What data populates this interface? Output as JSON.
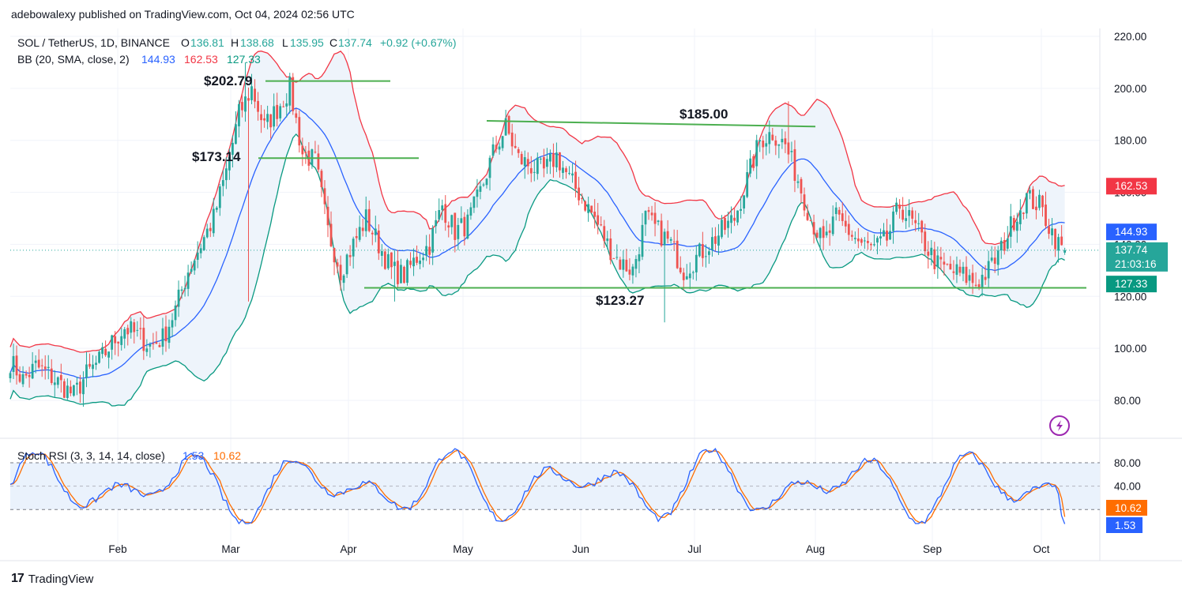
{
  "header": {
    "publisher_text": "adebowalexy published on TradingView.com, Oct 04, 2024 02:56 UTC"
  },
  "legend": {
    "symbol": "SOL / TetherUS, 1D, BINANCE",
    "o_label": "O",
    "o_value": "136.81",
    "h_label": "H",
    "h_value": "138.68",
    "l_label": "L",
    "l_value": "135.95",
    "c_label": "C",
    "c_value": "137.74",
    "change": "+0.92 (+0.67%)",
    "bb_label": "BB (20, SMA, close, 2)",
    "bb_mid": "144.93",
    "bb_upper": "162.53",
    "bb_lower": "127.33",
    "stoch_label": "Stoch RSI (3, 3, 14, 14, close)",
    "stoch_k": "1.53",
    "stoch_d": "10.62"
  },
  "footer": {
    "brand": "TradingView",
    "logo": "17"
  },
  "colors": {
    "up": "#26a69a",
    "down": "#ef5350",
    "bb_upper": "#f23645",
    "bb_mid": "#2962ff",
    "bb_lower": "#089981",
    "band_fill": "#eef4fb",
    "annotation": "#4caf50",
    "k": "#2962ff",
    "d": "#ff6d00",
    "grid": "#f0f3fa"
  },
  "chart_data": {
    "type": "candlestick",
    "symbol": "SOL / TetherUS",
    "interval": "1D",
    "ylim": [
      70,
      225
    ],
    "y_ticks": [
      "220.00",
      "200.00",
      "180.00",
      "160.00",
      "140.00",
      "120.00",
      "100.00",
      "80.00"
    ],
    "x_ticks": [
      "Feb",
      "Mar",
      "Apr",
      "May",
      "Jun",
      "Jul",
      "Aug",
      "Sep",
      "Oct"
    ],
    "price_badges": [
      {
        "value": "162.53",
        "y": 162.53,
        "color": "#f23645"
      },
      {
        "value": "144.93",
        "y": 144.93,
        "color": "#2962ff"
      },
      {
        "value": "137.74",
        "sub": "21:03:16",
        "y": 137.74,
        "color": "#26a69a"
      },
      {
        "value": "127.33",
        "y": 127.33,
        "color": "#089981"
      }
    ],
    "annotations": [
      {
        "label": "$202.79",
        "price": 202.79
      },
      {
        "label": "$173.14",
        "price": 173.14
      },
      {
        "label": "$185.00",
        "price": 185.0
      },
      {
        "label": "$123.27",
        "price": 123.27
      }
    ],
    "waypoints": [
      [
        0,
        95
      ],
      [
        4,
        88
      ],
      [
        8,
        93
      ],
      [
        12,
        90
      ],
      [
        16,
        86
      ],
      [
        20,
        82
      ],
      [
        24,
        90
      ],
      [
        28,
        95
      ],
      [
        32,
        102
      ],
      [
        36,
        108
      ],
      [
        40,
        105
      ],
      [
        44,
        101
      ],
      [
        48,
        104
      ],
      [
        52,
        115
      ],
      [
        56,
        130
      ],
      [
        60,
        140
      ],
      [
        64,
        150
      ],
      [
        68,
        168
      ],
      [
        72,
        190
      ],
      [
        76,
        200
      ],
      [
        80,
        185
      ],
      [
        84,
        192
      ],
      [
        88,
        200
      ],
      [
        92,
        175
      ],
      [
        96,
        172
      ],
      [
        100,
        145
      ],
      [
        104,
        130
      ],
      [
        108,
        140
      ],
      [
        112,
        150
      ],
      [
        116,
        140
      ],
      [
        120,
        130
      ],
      [
        124,
        128
      ],
      [
        128,
        135
      ],
      [
        132,
        140
      ],
      [
        136,
        155
      ],
      [
        140,
        145
      ],
      [
        144,
        148
      ],
      [
        148,
        160
      ],
      [
        152,
        175
      ],
      [
        156,
        185
      ],
      [
        160,
        173
      ],
      [
        164,
        170
      ],
      [
        168,
        168
      ],
      [
        172,
        174
      ],
      [
        176,
        165
      ],
      [
        180,
        158
      ],
      [
        184,
        150
      ],
      [
        188,
        140
      ],
      [
        192,
        133
      ],
      [
        196,
        130
      ],
      [
        200,
        150
      ],
      [
        204,
        145
      ],
      [
        208,
        140
      ],
      [
        212,
        130
      ],
      [
        216,
        135
      ],
      [
        220,
        140
      ],
      [
        224,
        145
      ],
      [
        228,
        150
      ],
      [
        232,
        165
      ],
      [
        236,
        180
      ],
      [
        240,
        183
      ],
      [
        244,
        178
      ],
      [
        248,
        165
      ],
      [
        252,
        150
      ],
      [
        256,
        140
      ],
      [
        260,
        150
      ],
      [
        264,
        145
      ],
      [
        268,
        140
      ],
      [
        272,
        138
      ],
      [
        276,
        142
      ],
      [
        280,
        155
      ],
      [
        284,
        148
      ],
      [
        288,
        140
      ],
      [
        292,
        132
      ],
      [
        296,
        130
      ],
      [
        300,
        128
      ],
      [
        304,
        125
      ],
      [
        308,
        130
      ],
      [
        312,
        138
      ],
      [
        316,
        150
      ],
      [
        320,
        158
      ],
      [
        324,
        155
      ],
      [
        326,
        150
      ],
      [
        330,
        140
      ],
      [
        332,
        137.74
      ]
    ],
    "stoch_rsi": {
      "k_last": 1.53,
      "d_last": 10.62,
      "ylim": [
        -12,
        102
      ],
      "ticks": [
        "80.00",
        "40.00"
      ],
      "band": [
        20,
        80
      ]
    }
  }
}
